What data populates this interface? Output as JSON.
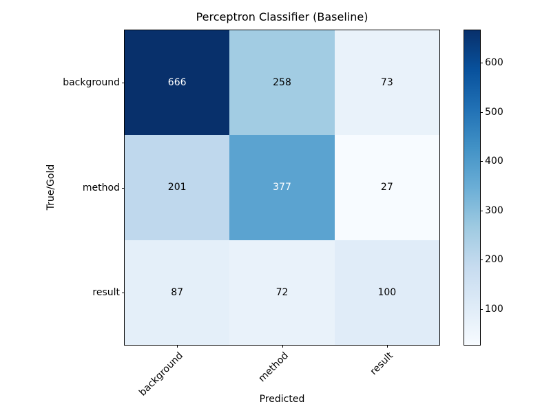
{
  "chart_data": {
    "type": "heatmap",
    "title": "Perceptron Classifier (Baseline)",
    "xlabel": "Predicted",
    "ylabel": "True/Gold",
    "x_categories": [
      "background",
      "method",
      "result"
    ],
    "y_categories": [
      "background",
      "method",
      "result"
    ],
    "values": [
      [
        666,
        258,
        73
      ],
      [
        201,
        377,
        27
      ],
      [
        87,
        72,
        100
      ]
    ],
    "vmin": 27,
    "vmax": 666,
    "colormap": "Blues",
    "colormap_stops": [
      "#f7fbff",
      "#deebf7",
      "#c6dbef",
      "#9ecae1",
      "#6baed6",
      "#4292c6",
      "#2171b5",
      "#08519c",
      "#08306b"
    ],
    "colorbar_ticks": [
      100,
      200,
      300,
      400,
      500,
      600
    ],
    "annotation_color_light": "#ffffff",
    "annotation_color_dark": "#000000",
    "axis_color": "#000000",
    "grid": false,
    "legend_position": "right-colorbar"
  }
}
